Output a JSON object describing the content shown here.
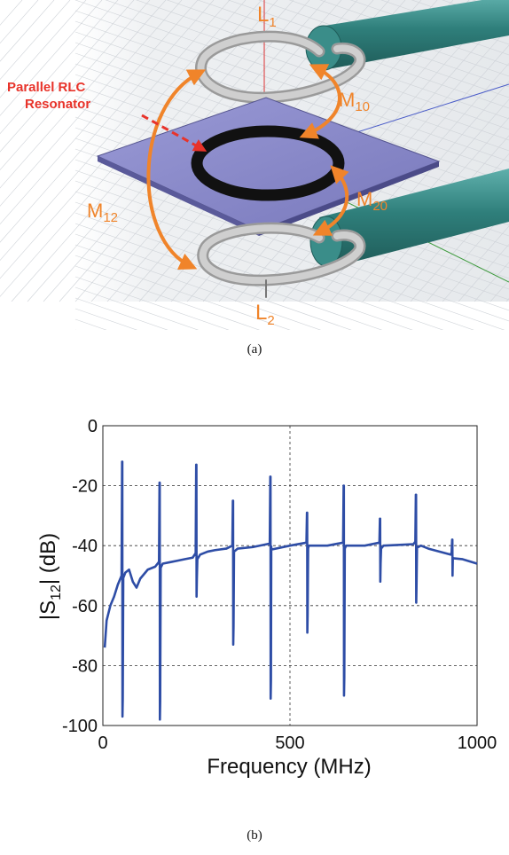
{
  "figure_a": {
    "labels": {
      "L1": "L",
      "L1_sub": "1",
      "L2": "L",
      "L2_sub": "2",
      "resonator_line1": "Parallel RLC",
      "resonator_line2": "Resonator",
      "M10": "M",
      "M10_sub": "10",
      "M20": "M",
      "M20_sub": "20",
      "M12": "M",
      "M12_sub": "12"
    },
    "caption": "(a)",
    "colors": {
      "label": "#f0842a",
      "resonator_label": "#e8332a",
      "board": "#8585c8",
      "ring": "#111111",
      "cable": "#2f7f7b",
      "wire": "#b7b7b7"
    }
  },
  "figure_b": {
    "caption": "(b)"
  },
  "chart_data": {
    "type": "line",
    "xlabel": "Frequency (MHz)",
    "ylabel_main": "|S",
    "ylabel_sub": "12",
    "ylabel_tail": "| (dB)",
    "xlim": [
      0,
      1000
    ],
    "ylim": [
      -100,
      0
    ],
    "xticks": [
      0,
      500,
      1000
    ],
    "yticks": [
      0,
      -20,
      -40,
      -60,
      -80,
      -100
    ],
    "grid": true,
    "series_color": "#2e4da6",
    "baseline": [
      [
        5,
        -74
      ],
      [
        10,
        -65
      ],
      [
        20,
        -60
      ],
      [
        30,
        -57
      ],
      [
        40,
        -53
      ],
      [
        50,
        -50
      ],
      [
        60,
        -49
      ],
      [
        70,
        -48
      ],
      [
        80,
        -52
      ],
      [
        90,
        -54
      ],
      [
        100,
        -51
      ],
      [
        120,
        -48
      ],
      [
        140,
        -47
      ],
      [
        160,
        -46
      ],
      [
        180,
        -45.5
      ],
      [
        200,
        -45
      ],
      [
        220,
        -44.5
      ],
      [
        240,
        -44
      ],
      [
        260,
        -43
      ],
      [
        280,
        -42
      ],
      [
        300,
        -41.5
      ],
      [
        330,
        -41
      ],
      [
        360,
        -41
      ],
      [
        400,
        -40.5
      ],
      [
        450,
        -40.3
      ],
      [
        500,
        -40
      ],
      [
        550,
        -40
      ],
      [
        600,
        -40
      ],
      [
        650,
        -40
      ],
      [
        700,
        -40
      ],
      [
        750,
        -40
      ],
      [
        800,
        -39.7
      ],
      [
        830,
        -39.5
      ],
      [
        850,
        -40
      ],
      [
        870,
        -41
      ],
      [
        900,
        -42
      ],
      [
        930,
        -43
      ],
      [
        960,
        -44.5
      ],
      [
        1000,
        -46
      ]
    ],
    "resonances": [
      {
        "f": 52,
        "max": -12,
        "min": -97
      },
      {
        "f": 152,
        "max": -19,
        "min": -98
      },
      {
        "f": 250,
        "max": -13,
        "min": -57
      },
      {
        "f": 348,
        "max": -25,
        "min": -73
      },
      {
        "f": 448,
        "max": -17,
        "min": -91
      },
      {
        "f": 546,
        "max": -29,
        "min": -69
      },
      {
        "f": 644,
        "max": -20,
        "min": -90
      },
      {
        "f": 741,
        "max": -31,
        "min": -52
      },
      {
        "f": 837,
        "max": -23,
        "min": -59
      },
      {
        "f": 934,
        "max": -38,
        "min": -50
      }
    ]
  }
}
